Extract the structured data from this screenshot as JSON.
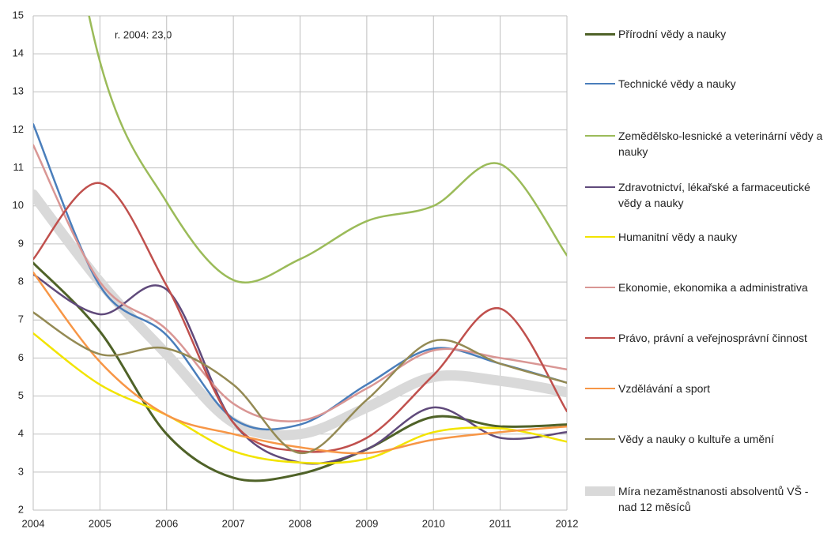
{
  "chart_data": {
    "type": "line",
    "annotation": "r. 2004: 23,0",
    "x": [
      2004,
      2005,
      2006,
      2007,
      2008,
      2009,
      2010,
      2011,
      2012
    ],
    "xlim": [
      2004,
      2012
    ],
    "xticks": [
      2004,
      2005,
      2006,
      2007,
      2008,
      2009,
      2010,
      2011,
      2012
    ],
    "ylim": [
      2,
      15
    ],
    "yticks": [
      2,
      3,
      4,
      5,
      6,
      7,
      8,
      9,
      10,
      11,
      12,
      13,
      14,
      15
    ],
    "grid": true,
    "legend": "right",
    "series": [
      {
        "name": "Přírodní vědy a nauky",
        "color": "#4f6228",
        "width": 3,
        "values": [
          8.5,
          6.7,
          4.0,
          2.85,
          2.95,
          3.6,
          4.45,
          4.2,
          4.25
        ]
      },
      {
        "name": "Technické vědy a nauky",
        "color": "#4a7ebb",
        "width": 2.5,
        "values": [
          12.15,
          7.9,
          6.6,
          4.4,
          4.25,
          5.3,
          6.25,
          5.85,
          5.35
        ]
      },
      {
        "name": "Zemědělsko-lesnické a veterinární vědy a nauky",
        "color": "#9bbb59",
        "width": 2.5,
        "values": [
          23.0,
          13.8,
          10.1,
          8.05,
          8.6,
          9.6,
          10.0,
          11.1,
          8.7
        ]
      },
      {
        "name": "Zdravotnictví, lékařské a farmaceutické vědy a nauky",
        "color": "#604a7b",
        "width": 2.5,
        "values": [
          8.2,
          7.15,
          7.8,
          4.3,
          3.25,
          3.6,
          4.7,
          3.9,
          4.05
        ]
      },
      {
        "name": "Humanitní vědy a nauky",
        "color": "#f2e400",
        "width": 2.5,
        "values": [
          6.65,
          5.3,
          4.5,
          3.55,
          3.25,
          3.35,
          4.05,
          4.15,
          3.8
        ]
      },
      {
        "name": "Ekonomie, ekonomika a administrativa",
        "color": "#d99694",
        "width": 2.5,
        "values": [
          11.6,
          8.0,
          6.75,
          4.8,
          4.35,
          5.2,
          6.2,
          6.0,
          5.7
        ]
      },
      {
        "name": "Právo, právní a veřejnosprávní činnost",
        "color": "#c0504d",
        "width": 2.5,
        "values": [
          8.6,
          10.6,
          7.9,
          4.3,
          3.55,
          3.9,
          5.55,
          7.3,
          4.6
        ]
      },
      {
        "name": "Vzdělávání a sport",
        "color": "#f79646",
        "width": 2.5,
        "values": [
          8.25,
          5.9,
          4.5,
          4.0,
          3.65,
          3.5,
          3.85,
          4.05,
          4.2
        ]
      },
      {
        "name": "Vědy a nauky o kultuře a umění",
        "color": "#948a54",
        "width": 2.5,
        "values": [
          7.2,
          6.1,
          6.25,
          5.3,
          3.5,
          4.9,
          6.45,
          5.85,
          5.35
        ]
      },
      {
        "name": "Míra nezaměstnanosti absolventů VŠ - nad 12 měsíců",
        "color": "#d9d9d9",
        "width": 13,
        "values": [
          10.3,
          8.0,
          6.1,
          4.3,
          4.0,
          4.7,
          5.5,
          5.4,
          5.1
        ]
      }
    ]
  }
}
